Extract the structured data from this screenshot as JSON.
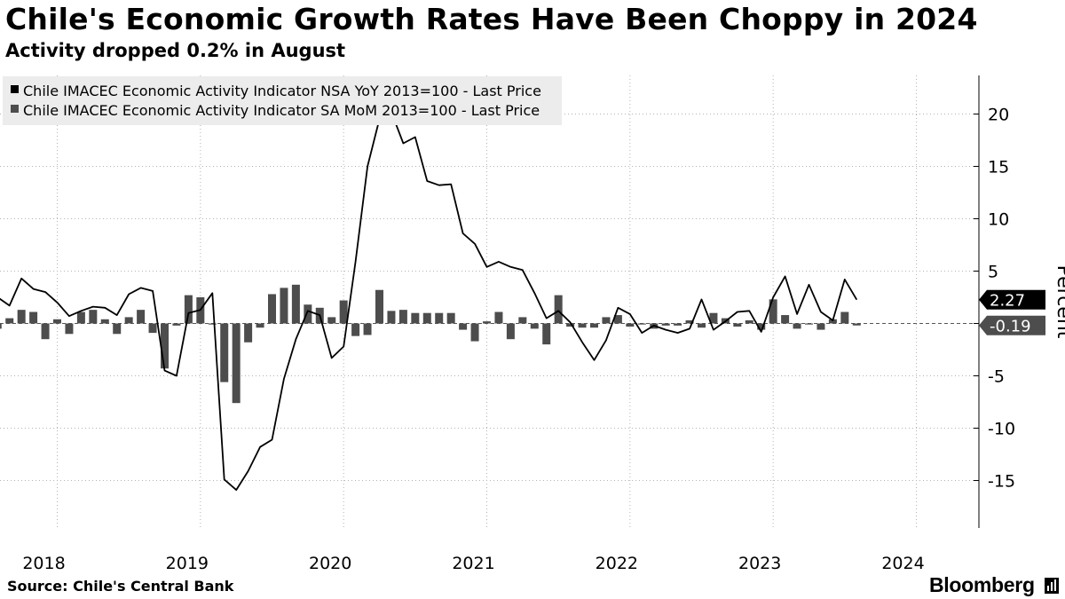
{
  "header": {
    "title": "Chile's Economic Growth Rates Have Been Choppy in 2024",
    "subtitle": "Activity dropped 0.2% in August"
  },
  "footer": {
    "source": "Source: Chile's Central Bank",
    "brand": "Bloomberg"
  },
  "colors": {
    "line": "#000000",
    "bars": "#4d4d4d",
    "grid": "#b3b3b3",
    "legend_bg": "#ececec"
  },
  "chart_data": {
    "type": "bar",
    "title": "Chile's Economic Growth Rates Have Been Choppy in 2024",
    "ylabel": "Percent",
    "ylim": [
      -18,
      24
    ],
    "yticks": [
      20,
      15,
      10,
      5,
      0,
      -5,
      -10,
      -15
    ],
    "ytick_labels": [
      "20",
      "15",
      "10",
      "5",
      "",
      "-5",
      "-10",
      "-15"
    ],
    "x_tick_labels": [
      "2018",
      "2019",
      "2020",
      "2021",
      "2022",
      "2023",
      "2024"
    ],
    "x_tick_dates": [
      "2018-01",
      "2019-01",
      "2020-01",
      "2021-01",
      "2022-01",
      "2023-01",
      "2024-01"
    ],
    "grid": true,
    "legend_position": "top-left",
    "y_axis_position": "right",
    "series": [
      {
        "name": "Chile IMACEC Economic Activity Indicator NSA YoY 2013=100 - Last Price",
        "type": "line",
        "last_value_label": "2.27",
        "values": [
          {
            "x": "2017-08",
            "y": 2.5
          },
          {
            "x": "2017-09",
            "y": 1.7
          },
          {
            "x": "2017-10",
            "y": 4.3
          },
          {
            "x": "2017-11",
            "y": 3.3
          },
          {
            "x": "2017-12",
            "y": 3.0
          },
          {
            "x": "2018-01",
            "y": 2.0
          },
          {
            "x": "2018-02",
            "y": 0.7
          },
          {
            "x": "2018-03",
            "y": 1.2
          },
          {
            "x": "2018-04",
            "y": 1.6
          },
          {
            "x": "2018-05",
            "y": 1.5
          },
          {
            "x": "2018-06",
            "y": 0.8
          },
          {
            "x": "2018-07",
            "y": 2.8
          },
          {
            "x": "2018-08",
            "y": 3.4
          },
          {
            "x": "2018-09",
            "y": 3.1
          },
          {
            "x": "2018-10",
            "y": -4.5
          },
          {
            "x": "2018-11",
            "y": -5.0
          },
          {
            "x": "2018-12",
            "y": 1.0
          },
          {
            "x": "2019-01",
            "y": 1.3
          },
          {
            "x": "2019-02",
            "y": 2.9
          },
          {
            "x": "2019-03",
            "y": -14.9
          },
          {
            "x": "2019-04",
            "y": -15.9
          },
          {
            "x": "2019-05",
            "y": -14.1
          },
          {
            "x": "2019-06",
            "y": -11.8
          },
          {
            "x": "2019-07",
            "y": -11.1
          },
          {
            "x": "2019-08",
            "y": -5.3
          },
          {
            "x": "2019-09",
            "y": -1.5
          },
          {
            "x": "2019-10",
            "y": 1.2
          },
          {
            "x": "2019-11",
            "y": 0.8
          },
          {
            "x": "2019-12",
            "y": -3.3
          },
          {
            "x": "2020-01",
            "y": -2.2
          },
          {
            "x": "2020-02",
            "y": 5.9
          },
          {
            "x": "2020-03",
            "y": 15.0
          },
          {
            "x": "2020-04",
            "y": 19.5
          },
          {
            "x": "2020-05",
            "y": 20.2
          },
          {
            "x": "2020-06",
            "y": 17.2
          },
          {
            "x": "2020-07",
            "y": 17.8
          },
          {
            "x": "2020-08",
            "y": 13.6
          },
          {
            "x": "2020-09",
            "y": 13.2
          },
          {
            "x": "2020-10",
            "y": 13.3
          },
          {
            "x": "2020-11",
            "y": 8.6
          },
          {
            "x": "2020-12",
            "y": 7.6
          },
          {
            "x": "2021-01",
            "y": 5.4
          },
          {
            "x": "2021-02",
            "y": 5.9
          },
          {
            "x": "2021-03",
            "y": 5.4
          },
          {
            "x": "2021-04",
            "y": 5.1
          },
          {
            "x": "2021-05",
            "y": 2.9
          },
          {
            "x": "2021-06",
            "y": 0.5
          },
          {
            "x": "2021-07",
            "y": 1.2
          },
          {
            "x": "2021-08",
            "y": 0.1
          },
          {
            "x": "2021-09",
            "y": -1.8
          },
          {
            "x": "2021-10",
            "y": -3.5
          },
          {
            "x": "2021-11",
            "y": -1.6
          },
          {
            "x": "2021-12",
            "y": 1.5
          },
          {
            "x": "2022-01",
            "y": 0.9
          },
          {
            "x": "2022-02",
            "y": -0.9
          },
          {
            "x": "2022-03",
            "y": -0.2
          },
          {
            "x": "2022-04",
            "y": -0.6
          },
          {
            "x": "2022-05",
            "y": -0.9
          },
          {
            "x": "2022-06",
            "y": -0.5
          },
          {
            "x": "2022-07",
            "y": 2.3
          },
          {
            "x": "2022-08",
            "y": -0.6
          },
          {
            "x": "2022-09",
            "y": 0.2
          },
          {
            "x": "2022-10",
            "y": 1.1
          },
          {
            "x": "2022-11",
            "y": 1.2
          },
          {
            "x": "2022-12",
            "y": -0.8
          },
          {
            "x": "2023-01",
            "y": 2.5
          },
          {
            "x": "2023-02",
            "y": 4.5
          },
          {
            "x": "2023-03",
            "y": 0.9
          },
          {
            "x": "2023-04",
            "y": 3.7
          },
          {
            "x": "2023-05",
            "y": 1.1
          },
          {
            "x": "2023-06",
            "y": 0.3
          },
          {
            "x": "2023-07",
            "y": 4.2
          },
          {
            "x": "2023-08",
            "y": 2.27
          }
        ]
      },
      {
        "name": "Chile IMACEC Economic Activity Indicator SA MoM 2013=100 - Last Price",
        "type": "bar",
        "last_value_label": "-0.19",
        "values": [
          {
            "x": "2017-08",
            "y": -0.5
          },
          {
            "x": "2017-09",
            "y": 0.5
          },
          {
            "x": "2017-10",
            "y": 1.3
          },
          {
            "x": "2017-11",
            "y": 1.1
          },
          {
            "x": "2017-12",
            "y": -1.5
          },
          {
            "x": "2018-01",
            "y": 0.4
          },
          {
            "x": "2018-02",
            "y": -1.0
          },
          {
            "x": "2018-03",
            "y": 1.1
          },
          {
            "x": "2018-04",
            "y": 1.3
          },
          {
            "x": "2018-05",
            "y": 0.4
          },
          {
            "x": "2018-06",
            "y": -1.0
          },
          {
            "x": "2018-07",
            "y": 0.6
          },
          {
            "x": "2018-08",
            "y": 1.3
          },
          {
            "x": "2018-09",
            "y": -0.9
          },
          {
            "x": "2018-10",
            "y": -4.3
          },
          {
            "x": "2018-11",
            "y": -0.2
          },
          {
            "x": "2018-12",
            "y": 2.7
          },
          {
            "x": "2019-01",
            "y": 2.5
          },
          {
            "x": "2019-02",
            "y": -0.1
          },
          {
            "x": "2019-03",
            "y": -5.6
          },
          {
            "x": "2019-04",
            "y": -7.6
          },
          {
            "x": "2019-05",
            "y": -1.8
          },
          {
            "x": "2019-06",
            "y": -0.4
          },
          {
            "x": "2019-07",
            "y": 2.8
          },
          {
            "x": "2019-08",
            "y": 3.4
          },
          {
            "x": "2019-09",
            "y": 3.7
          },
          {
            "x": "2019-10",
            "y": 1.8
          },
          {
            "x": "2019-11",
            "y": 1.5
          },
          {
            "x": "2019-12",
            "y": 0.6
          },
          {
            "x": "2020-01",
            "y": 2.2
          },
          {
            "x": "2020-02",
            "y": -1.2
          },
          {
            "x": "2020-03",
            "y": -1.1
          },
          {
            "x": "2020-04",
            "y": 3.2
          },
          {
            "x": "2020-05",
            "y": 1.2
          },
          {
            "x": "2020-06",
            "y": 1.3
          },
          {
            "x": "2020-07",
            "y": 1.0
          },
          {
            "x": "2020-08",
            "y": 1.0
          },
          {
            "x": "2020-09",
            "y": 1.0
          },
          {
            "x": "2020-10",
            "y": 1.0
          },
          {
            "x": "2020-11",
            "y": -0.6
          },
          {
            "x": "2020-12",
            "y": -1.7
          },
          {
            "x": "2021-01",
            "y": 0.2
          },
          {
            "x": "2021-02",
            "y": 1.1
          },
          {
            "x": "2021-03",
            "y": -1.5
          },
          {
            "x": "2021-04",
            "y": 0.6
          },
          {
            "x": "2021-05",
            "y": -0.5
          },
          {
            "x": "2021-06",
            "y": -2.0
          },
          {
            "x": "2021-07",
            "y": 2.7
          },
          {
            "x": "2021-08",
            "y": -0.3
          },
          {
            "x": "2021-09",
            "y": -0.4
          },
          {
            "x": "2021-10",
            "y": -0.4
          },
          {
            "x": "2021-11",
            "y": 0.6
          },
          {
            "x": "2021-12",
            "y": 0.8
          },
          {
            "x": "2022-01",
            "y": -0.3
          },
          {
            "x": "2022-02",
            "y": -0.1
          },
          {
            "x": "2022-03",
            "y": -0.5
          },
          {
            "x": "2022-04",
            "y": -0.2
          },
          {
            "x": "2022-05",
            "y": -0.2
          },
          {
            "x": "2022-06",
            "y": 0.3
          },
          {
            "x": "2022-07",
            "y": -0.4
          },
          {
            "x": "2022-08",
            "y": 1.0
          },
          {
            "x": "2022-09",
            "y": 0.5
          },
          {
            "x": "2022-10",
            "y": -0.3
          },
          {
            "x": "2022-11",
            "y": 0.3
          },
          {
            "x": "2022-12",
            "y": -0.6
          },
          {
            "x": "2023-01",
            "y": 2.3
          },
          {
            "x": "2023-02",
            "y": 0.8
          },
          {
            "x": "2023-03",
            "y": -0.5
          },
          {
            "x": "2023-04",
            "y": -0.1
          },
          {
            "x": "2023-05",
            "y": -0.6
          },
          {
            "x": "2023-06",
            "y": 0.4
          },
          {
            "x": "2023-07",
            "y": 1.1
          },
          {
            "x": "2023-08",
            "y": -0.19
          }
        ]
      }
    ]
  }
}
